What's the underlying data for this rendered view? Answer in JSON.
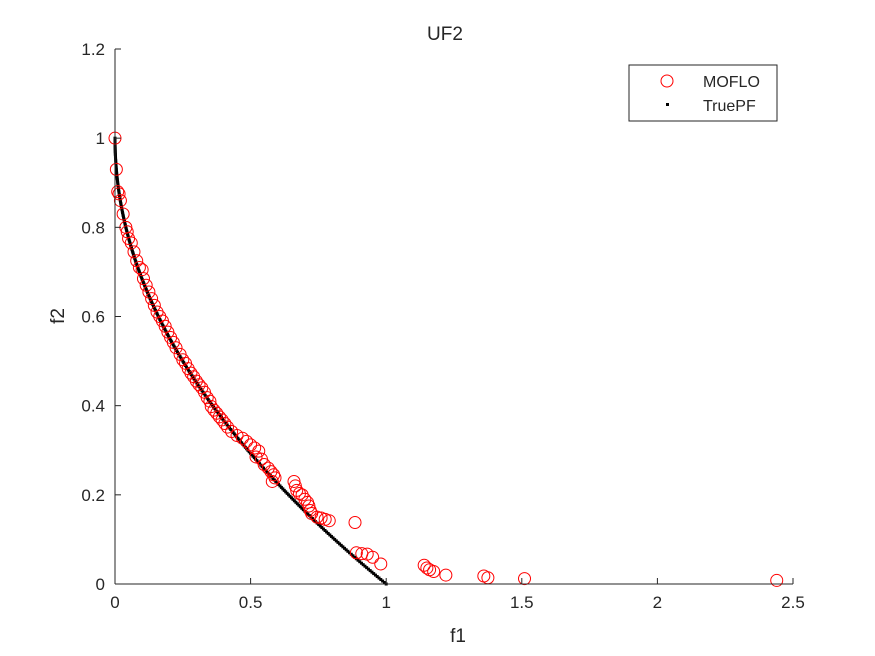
{
  "chart_data": {
    "type": "scatter",
    "title": "UF2",
    "xlabel": "f1",
    "ylabel": "f2",
    "xlim": [
      0,
      2.5
    ],
    "ylim": [
      0,
      1.2
    ],
    "xticks": [
      0,
      0.5,
      1,
      1.5,
      2,
      2.5
    ],
    "xtick_labels": [
      "0",
      "0.5",
      "1",
      "1.5",
      "2",
      "2.5"
    ],
    "yticks": [
      0,
      0.2,
      0.4,
      0.6,
      0.8,
      1,
      1.2
    ],
    "ytick_labels": [
      "0",
      "0.2",
      "0.4",
      "0.6",
      "0.8",
      "1",
      "1.2"
    ],
    "grid": false,
    "legend_position": "top-right",
    "series": [
      {
        "name": "MOFLO",
        "marker": "open-circle",
        "color": "#ff0000",
        "points": [
          [
            0.0,
            1.0
          ],
          [
            0.005,
            0.93
          ],
          [
            0.01,
            0.88
          ],
          [
            0.015,
            0.875
          ],
          [
            0.02,
            0.86
          ],
          [
            0.03,
            0.83
          ],
          [
            0.04,
            0.8
          ],
          [
            0.045,
            0.79
          ],
          [
            0.05,
            0.775
          ],
          [
            0.06,
            0.765
          ],
          [
            0.07,
            0.745
          ],
          [
            0.08,
            0.725
          ],
          [
            0.09,
            0.71
          ],
          [
            0.1,
            0.705
          ],
          [
            0.105,
            0.685
          ],
          [
            0.115,
            0.67
          ],
          [
            0.125,
            0.655
          ],
          [
            0.135,
            0.64
          ],
          [
            0.145,
            0.625
          ],
          [
            0.155,
            0.61
          ],
          [
            0.165,
            0.6
          ],
          [
            0.175,
            0.59
          ],
          [
            0.185,
            0.578
          ],
          [
            0.195,
            0.565
          ],
          [
            0.205,
            0.553
          ],
          [
            0.215,
            0.542
          ],
          [
            0.225,
            0.53
          ],
          [
            0.24,
            0.515
          ],
          [
            0.25,
            0.503
          ],
          [
            0.26,
            0.495
          ],
          [
            0.27,
            0.483
          ],
          [
            0.28,
            0.473
          ],
          [
            0.29,
            0.465
          ],
          [
            0.3,
            0.455
          ],
          [
            0.31,
            0.447
          ],
          [
            0.32,
            0.44
          ],
          [
            0.33,
            0.43
          ],
          [
            0.34,
            0.418
          ],
          [
            0.35,
            0.41
          ],
          [
            0.355,
            0.398
          ],
          [
            0.365,
            0.39
          ],
          [
            0.375,
            0.383
          ],
          [
            0.385,
            0.375
          ],
          [
            0.395,
            0.368
          ],
          [
            0.405,
            0.36
          ],
          [
            0.415,
            0.352
          ],
          [
            0.43,
            0.342
          ],
          [
            0.45,
            0.333
          ],
          [
            0.47,
            0.327
          ],
          [
            0.485,
            0.32
          ],
          [
            0.5,
            0.312
          ],
          [
            0.515,
            0.305
          ],
          [
            0.53,
            0.298
          ],
          [
            0.52,
            0.285
          ],
          [
            0.54,
            0.28
          ],
          [
            0.55,
            0.268
          ],
          [
            0.565,
            0.26
          ],
          [
            0.575,
            0.252
          ],
          [
            0.585,
            0.245
          ],
          [
            0.59,
            0.238
          ],
          [
            0.58,
            0.23
          ],
          [
            0.66,
            0.23
          ],
          [
            0.665,
            0.22
          ],
          [
            0.67,
            0.21
          ],
          [
            0.68,
            0.203
          ],
          [
            0.69,
            0.2
          ],
          [
            0.7,
            0.19
          ],
          [
            0.71,
            0.183
          ],
          [
            0.715,
            0.175
          ],
          [
            0.72,
            0.165
          ],
          [
            0.725,
            0.158
          ],
          [
            0.745,
            0.15
          ],
          [
            0.76,
            0.148
          ],
          [
            0.775,
            0.145
          ],
          [
            0.79,
            0.142
          ],
          [
            0.885,
            0.138
          ],
          [
            0.89,
            0.07
          ],
          [
            0.91,
            0.068
          ],
          [
            0.93,
            0.067
          ],
          [
            0.95,
            0.06
          ],
          [
            0.98,
            0.045
          ],
          [
            1.14,
            0.042
          ],
          [
            1.15,
            0.036
          ],
          [
            1.16,
            0.032
          ],
          [
            1.175,
            0.028
          ],
          [
            1.22,
            0.02
          ],
          [
            1.36,
            0.018
          ],
          [
            1.375,
            0.014
          ],
          [
            1.51,
            0.012
          ],
          [
            2.44,
            0.008
          ]
        ]
      },
      {
        "name": "TruePF",
        "marker": "dot",
        "color": "#000000",
        "curve": "f2 = 1 - sqrt(f1)",
        "x_range": [
          0,
          1
        ]
      }
    ]
  }
}
